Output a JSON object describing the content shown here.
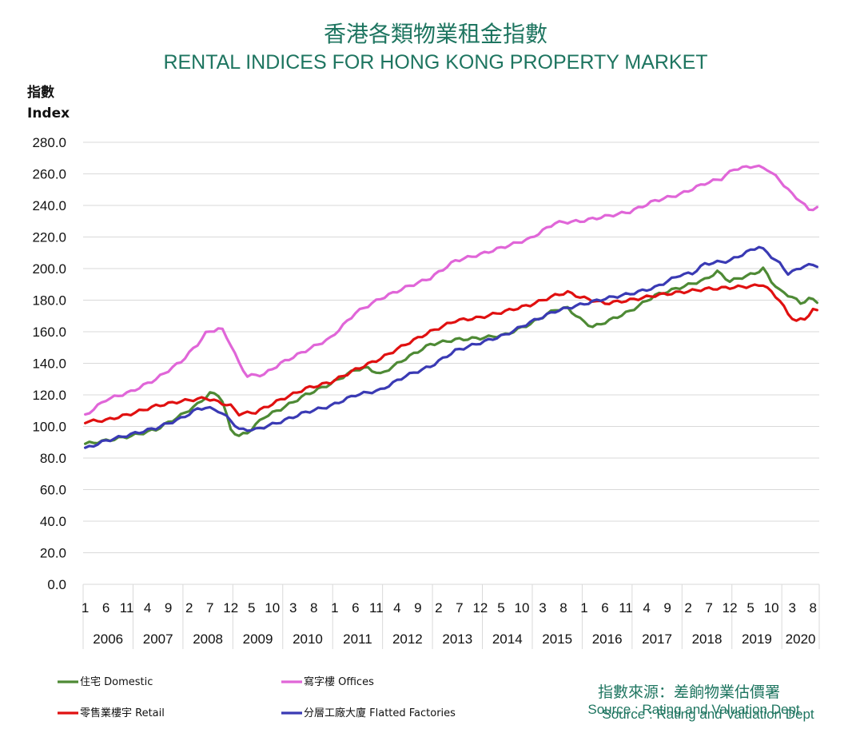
{
  "chart_data": {
    "type": "line",
    "title": "香港各類物業租金指數",
    "subtitle": "RENTAL INDICES FOR HONG KONG PROPERTY MARKET",
    "ylabel_zh": "指數",
    "ylabel_en": "Index",
    "ylim": [
      0,
      280
    ],
    "ytick_labels": [
      "0.0",
      "20.0",
      "40.0",
      "60.0",
      "80.0",
      "100.0",
      "120.0",
      "140.0",
      "160.0",
      "180.0",
      "200.0",
      "220.0",
      "240.0",
      "260.0",
      "280.0"
    ],
    "month_tick_labels": [
      "1",
      "6",
      "11",
      "4",
      "9",
      "2",
      "7",
      "12",
      "5",
      "10",
      "3",
      "8",
      "1",
      "6",
      "11",
      "4",
      "9",
      "2",
      "7",
      "12",
      "5",
      "10",
      "3",
      "8",
      "1",
      "6",
      "11",
      "4",
      "9",
      "2",
      "7",
      "12",
      "5",
      "10",
      "3",
      "8"
    ],
    "years": [
      "2006",
      "2007",
      "2008",
      "2009",
      "2010",
      "2011",
      "2012",
      "2013",
      "2014",
      "2015",
      "2016",
      "2017",
      "2018",
      "2019",
      "2020"
    ],
    "x_start": "2006-01",
    "x_end": "2020-09",
    "grid": true,
    "legend_position": "bottom",
    "series": [
      {
        "name": "住宅 Domestic",
        "color": "#4e8a35",
        "anchors": [
          [
            "2006-01",
            89
          ],
          [
            "2006-06",
            91
          ],
          [
            "2006-12",
            94
          ],
          [
            "2007-06",
            98
          ],
          [
            "2007-12",
            107
          ],
          [
            "2008-04",
            114
          ],
          [
            "2008-07",
            121
          ],
          [
            "2008-09",
            120
          ],
          [
            "2008-10",
            116
          ],
          [
            "2008-12",
            98
          ],
          [
            "2009-02",
            94
          ],
          [
            "2009-04",
            96
          ],
          [
            "2009-08",
            106
          ],
          [
            "2009-12",
            111
          ],
          [
            "2010-06",
            120
          ],
          [
            "2010-12",
            127
          ],
          [
            "2011-06",
            136
          ],
          [
            "2011-09",
            137
          ],
          [
            "2011-12",
            133
          ],
          [
            "2012-06",
            143
          ],
          [
            "2012-12",
            152
          ],
          [
            "2013-06",
            155
          ],
          [
            "2013-12",
            156
          ],
          [
            "2014-06",
            158
          ],
          [
            "2014-12",
            165
          ],
          [
            "2015-06",
            174
          ],
          [
            "2015-09",
            175
          ],
          [
            "2015-12",
            168
          ],
          [
            "2016-03",
            163
          ],
          [
            "2016-06",
            166
          ],
          [
            "2016-12",
            173
          ],
          [
            "2017-06",
            183
          ],
          [
            "2017-12",
            188
          ],
          [
            "2018-06",
            193
          ],
          [
            "2018-09",
            198
          ],
          [
            "2018-12",
            192
          ],
          [
            "2019-06",
            197
          ],
          [
            "2019-08",
            200
          ],
          [
            "2019-10",
            192
          ],
          [
            "2019-12",
            186
          ],
          [
            "2020-03",
            182
          ],
          [
            "2020-05",
            178
          ],
          [
            "2020-07",
            181
          ],
          [
            "2020-09",
            179
          ]
        ]
      },
      {
        "name": "寫字樓 Offices",
        "color": "#e066d8",
        "anchors": [
          [
            "2006-01",
            107
          ],
          [
            "2006-06",
            117
          ],
          [
            "2006-12",
            122
          ],
          [
            "2007-06",
            130
          ],
          [
            "2007-12",
            141
          ],
          [
            "2008-04",
            152
          ],
          [
            "2008-06",
            159
          ],
          [
            "2008-09",
            162
          ],
          [
            "2008-10",
            161
          ],
          [
            "2008-12",
            152
          ],
          [
            "2009-02",
            140
          ],
          [
            "2009-04",
            132
          ],
          [
            "2009-08",
            133
          ],
          [
            "2009-12",
            140
          ],
          [
            "2010-06",
            148
          ],
          [
            "2010-12",
            156
          ],
          [
            "2011-06",
            172
          ],
          [
            "2011-12",
            181
          ],
          [
            "2012-06",
            188
          ],
          [
            "2012-12",
            194
          ],
          [
            "2013-06",
            205
          ],
          [
            "2013-12",
            209
          ],
          [
            "2014-06",
            214
          ],
          [
            "2014-12",
            219
          ],
          [
            "2015-06",
            229
          ],
          [
            "2015-12",
            230
          ],
          [
            "2016-06",
            233
          ],
          [
            "2016-12",
            236
          ],
          [
            "2017-06",
            243
          ],
          [
            "2017-12",
            247
          ],
          [
            "2018-06",
            254
          ],
          [
            "2018-10",
            257
          ],
          [
            "2019-01",
            263
          ],
          [
            "2019-06",
            265
          ],
          [
            "2019-09",
            263
          ],
          [
            "2019-12",
            256
          ],
          [
            "2020-03",
            247
          ],
          [
            "2020-05",
            243
          ],
          [
            "2020-07",
            237
          ],
          [
            "2020-09",
            239
          ]
        ]
      },
      {
        "name": "零售業樓宇 Retail",
        "color": "#e01010",
        "anchors": [
          [
            "2006-01",
            103
          ],
          [
            "2006-06",
            104
          ],
          [
            "2006-12",
            108
          ],
          [
            "2007-06",
            113
          ],
          [
            "2007-12",
            116
          ],
          [
            "2008-06",
            118
          ],
          [
            "2008-12",
            113
          ],
          [
            "2009-02",
            108
          ],
          [
            "2009-06",
            109
          ],
          [
            "2009-12",
            117
          ],
          [
            "2010-06",
            124
          ],
          [
            "2010-12",
            128
          ],
          [
            "2011-06",
            136
          ],
          [
            "2011-12",
            143
          ],
          [
            "2012-06",
            152
          ],
          [
            "2012-12",
            160
          ],
          [
            "2013-06",
            167
          ],
          [
            "2013-12",
            169
          ],
          [
            "2014-06",
            173
          ],
          [
            "2014-12",
            177
          ],
          [
            "2015-06",
            183
          ],
          [
            "2015-09",
            185
          ],
          [
            "2015-12",
            182
          ],
          [
            "2016-06",
            178
          ],
          [
            "2016-12",
            180
          ],
          [
            "2017-06",
            183
          ],
          [
            "2017-12",
            185
          ],
          [
            "2018-06",
            187
          ],
          [
            "2018-12",
            188
          ],
          [
            "2019-06",
            189
          ],
          [
            "2019-08",
            190
          ],
          [
            "2019-10",
            185
          ],
          [
            "2019-12",
            180
          ],
          [
            "2020-02",
            171
          ],
          [
            "2020-04",
            167
          ],
          [
            "2020-06",
            168
          ],
          [
            "2020-08",
            174
          ],
          [
            "2020-09",
            173
          ]
        ]
      },
      {
        "name": "分層工廠大廈 Flatted Factories",
        "color": "#3a3ab4",
        "anchors": [
          [
            "2006-01",
            86
          ],
          [
            "2006-06",
            91
          ],
          [
            "2006-12",
            95
          ],
          [
            "2007-06",
            99
          ],
          [
            "2007-12",
            105
          ],
          [
            "2008-04",
            111
          ],
          [
            "2008-06",
            112
          ],
          [
            "2008-09",
            110
          ],
          [
            "2008-12",
            104
          ],
          [
            "2009-02",
            98
          ],
          [
            "2009-06",
            98
          ],
          [
            "2009-12",
            103
          ],
          [
            "2010-06",
            109
          ],
          [
            "2010-12",
            113
          ],
          [
            "2011-06",
            120
          ],
          [
            "2011-12",
            123
          ],
          [
            "2012-06",
            132
          ],
          [
            "2012-12",
            138
          ],
          [
            "2013-06",
            148
          ],
          [
            "2013-12",
            153
          ],
          [
            "2014-06",
            158
          ],
          [
            "2014-12",
            166
          ],
          [
            "2015-06",
            173
          ],
          [
            "2015-12",
            177
          ],
          [
            "2016-06",
            181
          ],
          [
            "2016-12",
            184
          ],
          [
            "2017-06",
            188
          ],
          [
            "2017-12",
            196
          ],
          [
            "2018-03",
            197
          ],
          [
            "2018-06",
            203
          ],
          [
            "2018-12",
            205
          ],
          [
            "2019-03",
            209
          ],
          [
            "2019-07",
            214
          ],
          [
            "2019-09",
            210
          ],
          [
            "2019-12",
            203
          ],
          [
            "2020-02",
            197
          ],
          [
            "2020-04",
            199
          ],
          [
            "2020-06",
            202
          ],
          [
            "2020-09",
            202
          ]
        ]
      }
    ]
  },
  "source": {
    "zh": "指數來源：差餉物業估價署",
    "en": "Source : Rating and Valuation Dept"
  }
}
